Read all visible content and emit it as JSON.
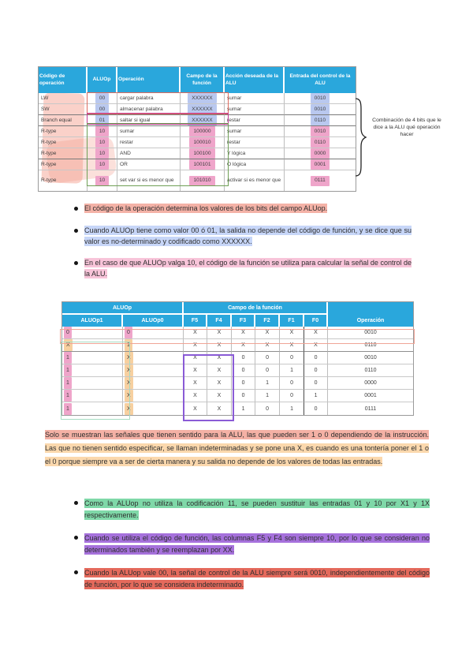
{
  "colors": {
    "header_blue": "#2aa7dc",
    "hl_blue": "#b9c8ef",
    "hl_pink": "#efa5ca",
    "hl_orange": "#f7d0a0",
    "bullet_salmon": "#f4b2a7",
    "bullet_lightblue": "#c7d6f8",
    "bullet_rose": "#f8c4d9",
    "bullet_green": "#7fd8a8",
    "bullet_purple": "#a671dc",
    "bullet_red": "#e56a5c",
    "paragraph_salmon": "#f4b1a5",
    "paragraph_peach": "#fbd8ad",
    "box_red": "#dd6b5e",
    "box_magenta": "#c43a94",
    "box_green": "#6fa055",
    "box_mint": "#a6dcc2",
    "box_violet": "#8a5bd6",
    "box_salmon_row": "#f0a496"
  },
  "table1": {
    "headers": [
      "Código de operación",
      "ALUOp",
      "Operación",
      "Campo de la función",
      "Acción deseada de la ALU",
      "Entrada del control de la ALU"
    ],
    "rows": [
      {
        "cells": [
          "LW",
          "00",
          "cargar palabra",
          "XXXXXX",
          "sumar",
          "0010"
        ],
        "hl": [
          "",
          "blue",
          "",
          "blue",
          "",
          "blue"
        ]
      },
      {
        "cells": [
          "SW",
          "00",
          "almacenar palabra",
          "XXXXXX",
          "sumar",
          "0010"
        ],
        "hl": [
          "",
          "blue",
          "",
          "blue",
          "",
          "blue"
        ]
      },
      {
        "cells": [
          "Branch equal",
          "01",
          "saltar si igual",
          "XXXXXX",
          "restar",
          "0110"
        ],
        "hl": [
          "",
          "blue",
          "",
          "blue",
          "",
          "blue"
        ]
      },
      {
        "cells": [
          "R-type",
          "10",
          "sumar",
          "100000",
          "sumar",
          "0010"
        ],
        "hl": [
          "",
          "pink",
          "",
          "pink",
          "",
          "pink"
        ]
      },
      {
        "cells": [
          "R-type",
          "10",
          "restar",
          "100010",
          "restar",
          "0110"
        ],
        "hl": [
          "",
          "pink",
          "",
          "pink",
          "",
          "pink"
        ]
      },
      {
        "cells": [
          "R-type",
          "10",
          "AND",
          "100100",
          "Y lógica",
          "0000"
        ],
        "hl": [
          "",
          "pink",
          "",
          "pink",
          "",
          "pink"
        ]
      },
      {
        "cells": [
          "R-type",
          "10",
          "OR",
          "100101",
          "O lógica",
          "0001"
        ],
        "hl": [
          "",
          "pink",
          "",
          "pink",
          "",
          "pink"
        ]
      },
      {
        "cells": [
          "R-type",
          "10",
          "set var si es menor que",
          "101010",
          "activar si es menor que",
          "0111"
        ],
        "hl": [
          "",
          "pink",
          "",
          "pink",
          "",
          "pink"
        ]
      }
    ]
  },
  "annotation": {
    "lines": [
      "Combinación de 4 bits que le",
      "dice a la ALU qué operación",
      "hacer"
    ]
  },
  "bullets_top": [
    {
      "text": "El código de la operación determina los valores de los bits del campo ALUop.",
      "color": "salmon"
    },
    {
      "text": "Cuando ALUOp tiene como valor 00 ó 01, la salida no depende del código de función, y se dice que su valor es no-determinado y codificado como XXXXXX.",
      "color": "blue"
    },
    {
      "text": "En el caso de que ALUOp valga 10, el código de la función se utiliza para calcular la señal de control de la ALU.",
      "color": "pink"
    }
  ],
  "table2": {
    "group_headers": [
      {
        "label": "ALUOp",
        "span": 2
      },
      {
        "label": "Campo de la función",
        "span": 6
      },
      {
        "label": "",
        "span": 1
      }
    ],
    "col_headers": [
      "ALUOp1",
      "ALUOp0",
      "F5",
      "F4",
      "F3",
      "F2",
      "F1",
      "F0",
      "Operación"
    ],
    "rows": [
      {
        "cells": [
          "0",
          "0",
          "X",
          "X",
          "X",
          "X",
          "X",
          "X",
          "0010"
        ],
        "hl": [
          "pink",
          "pink",
          "",
          "",
          "",
          "",
          "",
          "",
          ""
        ]
      },
      {
        "cells": [
          "X",
          "1",
          "X",
          "X",
          "X",
          "X",
          "X",
          "X",
          "0110"
        ],
        "hl": [
          "orange",
          "orange",
          "",
          "",
          "",
          "",
          "",
          "",
          ""
        ]
      },
      {
        "cells": [
          "1",
          "X",
          "X",
          "X",
          "0",
          "0",
          "0",
          "0",
          "0010"
        ],
        "hl": [
          "pink",
          "orange",
          "",
          "",
          "",
          "",
          "",
          "",
          ""
        ]
      },
      {
        "cells": [
          "1",
          "X",
          "X",
          "X",
          "0",
          "0",
          "1",
          "0",
          "0110"
        ],
        "hl": [
          "pink",
          "orange",
          "",
          "",
          "",
          "",
          "",
          "",
          ""
        ]
      },
      {
        "cells": [
          "1",
          "X",
          "X",
          "X",
          "0",
          "1",
          "0",
          "0",
          "0000"
        ],
        "hl": [
          "pink",
          "orange",
          "",
          "",
          "",
          "",
          "",
          "",
          ""
        ]
      },
      {
        "cells": [
          "1",
          "X",
          "X",
          "X",
          "0",
          "1",
          "0",
          "1",
          "0001"
        ],
        "hl": [
          "pink",
          "orange",
          "",
          "",
          "",
          "",
          "",
          "",
          ""
        ]
      },
      {
        "cells": [
          "1",
          "X",
          "X",
          "X",
          "1",
          "0",
          "1",
          "0",
          "0111"
        ],
        "hl": [
          "pink",
          "orange",
          "",
          "",
          "",
          "",
          "",
          "",
          ""
        ]
      }
    ]
  },
  "paragraph": {
    "segments": [
      {
        "text": "Solo se muestran las señales que tienen sentido para la ALU, las que pueden ser 1 o 0 dependiendo de la instrucción.",
        "color": "salmon"
      },
      {
        "text": " Las que no tienen sentido especificar, se llaman indeterminadas y se pone una X, es cuando es una tontería poner el 1 o el 0 porque siempre va a ser de cierta manera y su salida no depende de los valores de todas las entradas.",
        "color": "peach"
      }
    ]
  },
  "bullets_bottom": [
    {
      "text": "Como la ALUop no utiliza la codificación 11, se pueden sustituir las entradas 01 y 10 por X1 y 1X respectivamente.",
      "color": "green"
    },
    {
      "text": "Cuando se utiliza el código de función, las columnas F5 y F4 son siempre 10, por lo que se consideran no determinados también y se reemplazan por XX.",
      "color": "purple"
    },
    {
      "text": "Cuando la ALUop vale 00, la señal de control de la ALU siempre será 0010, independientemente del código de función, por lo que se considera indeterminado.",
      "color": "red"
    }
  ]
}
